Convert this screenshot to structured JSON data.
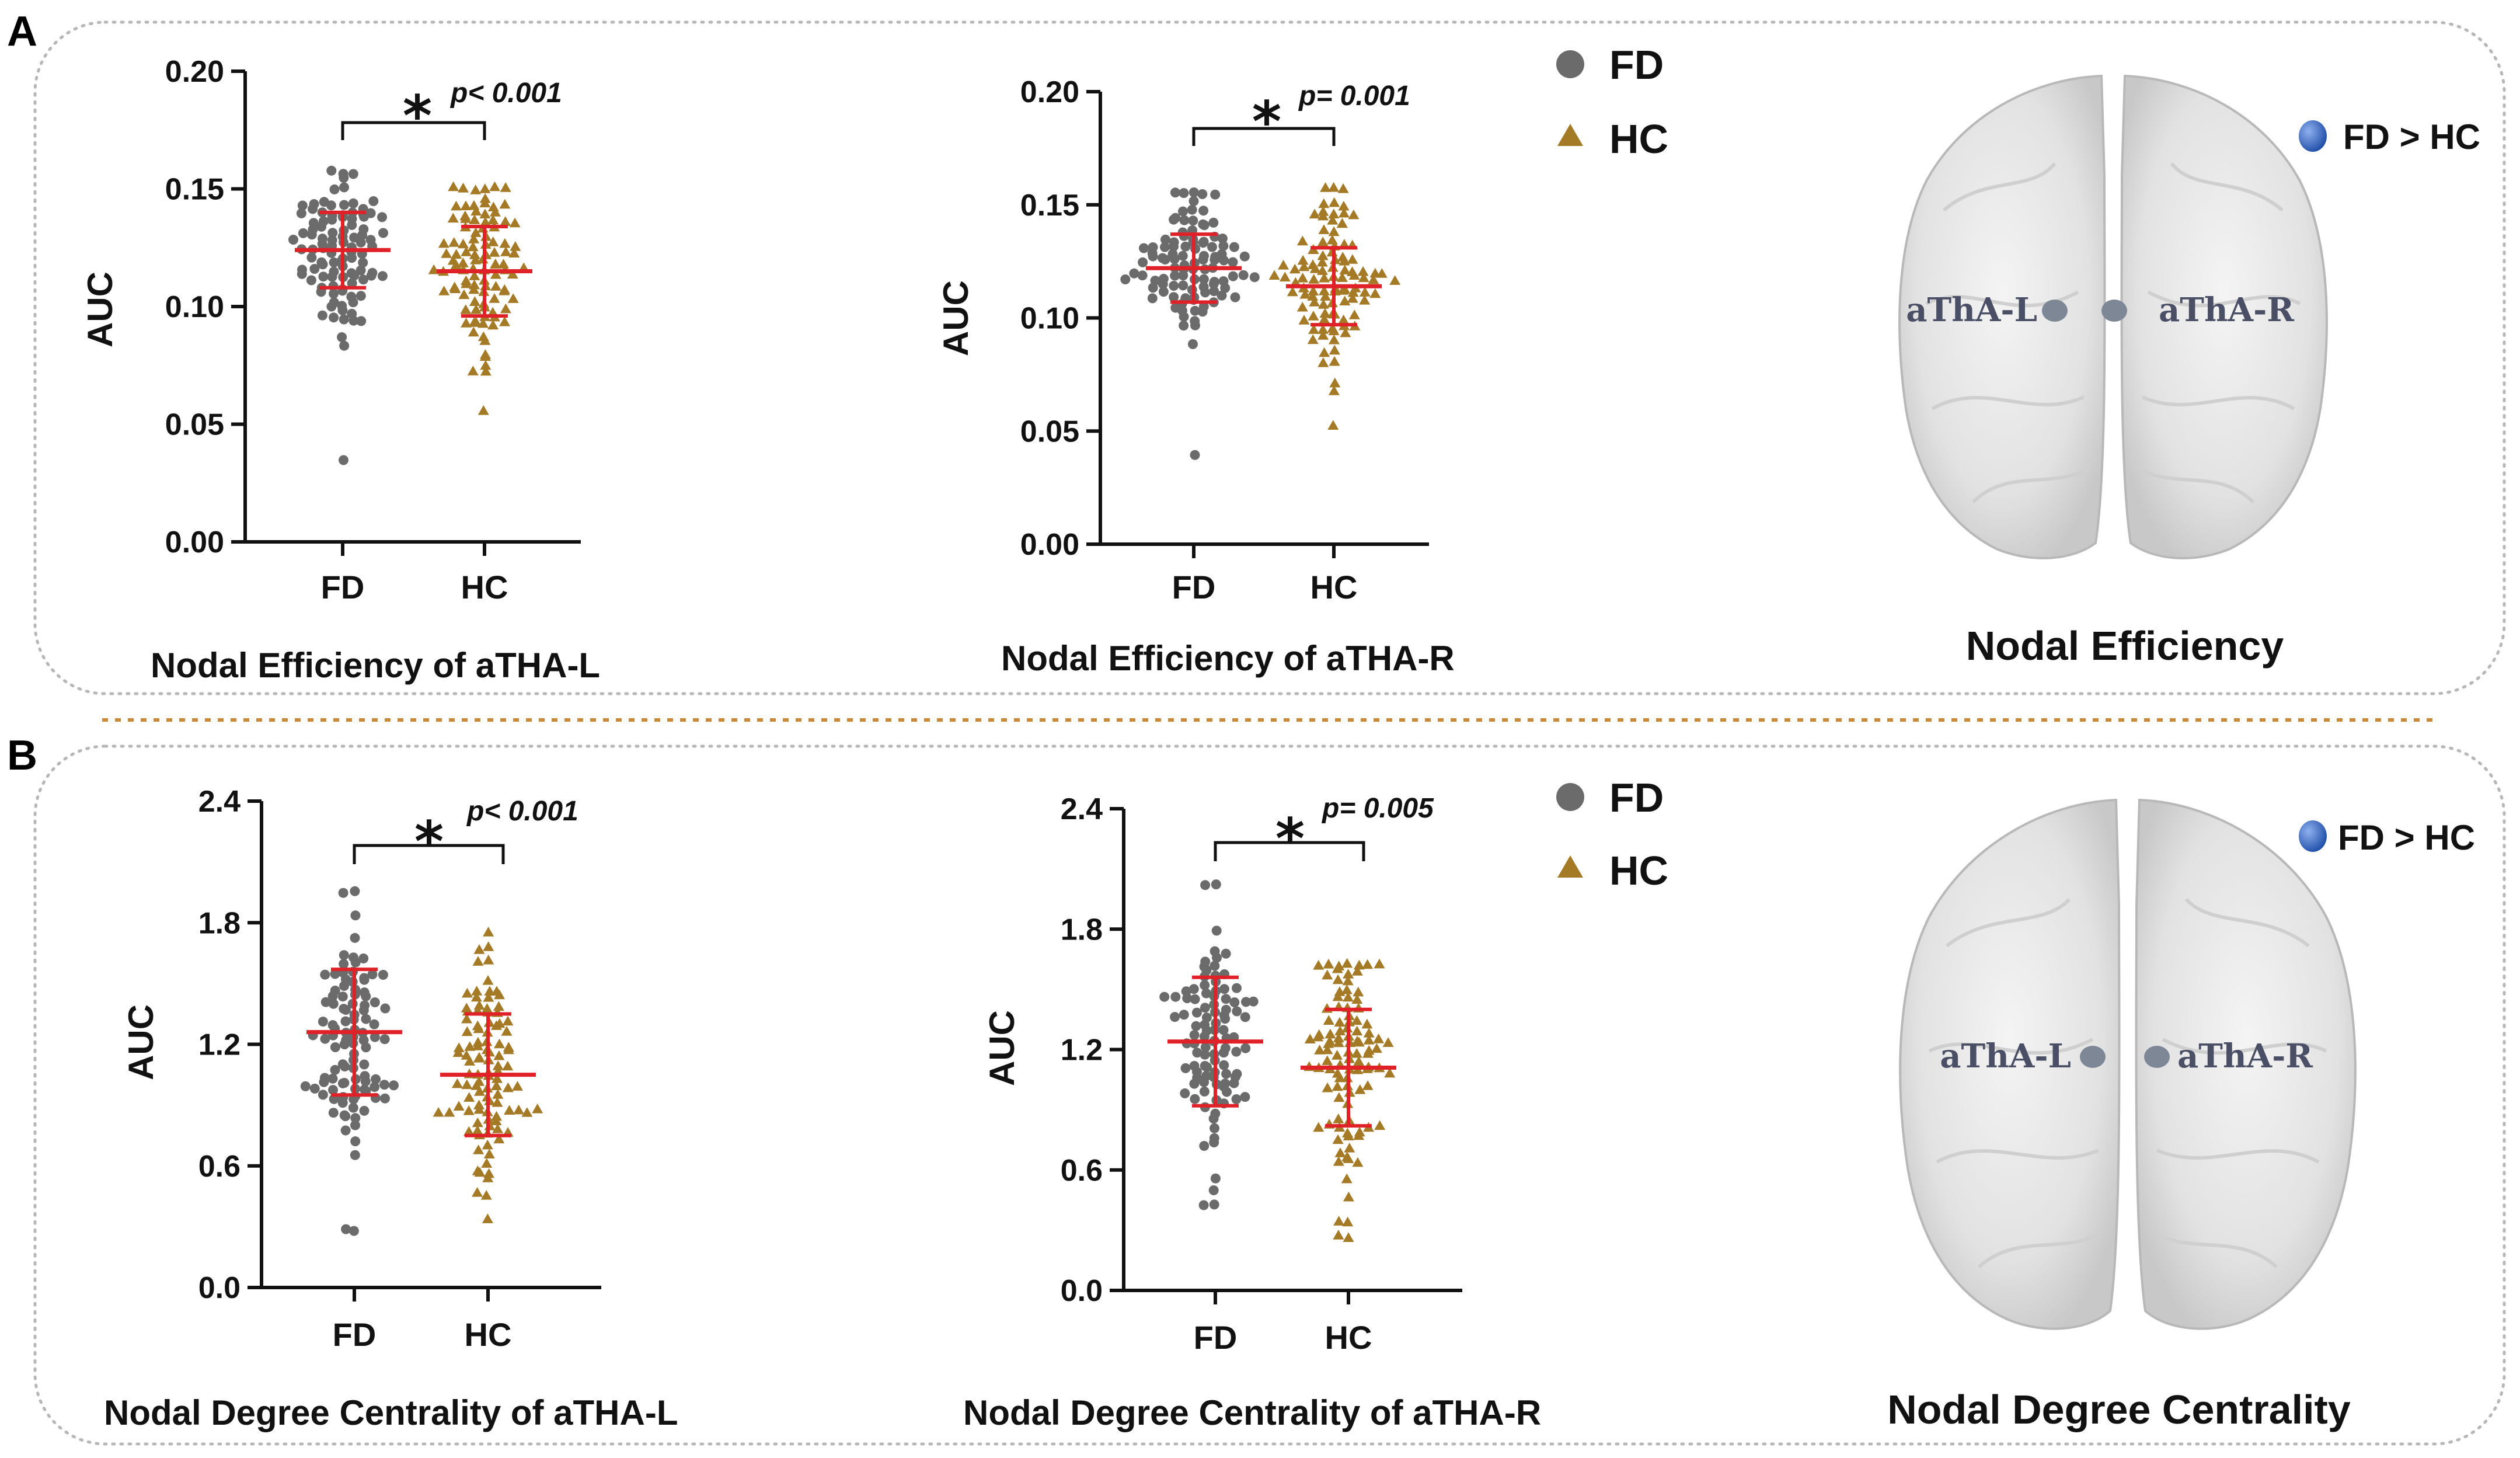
{
  "colors": {
    "fd": "#6b6b6b",
    "hc": "#a57a26",
    "errorbar": "#e02128",
    "node_gray": "#7d8796",
    "node_blue": "#2f5fb3"
  },
  "panels": [
    {
      "letter": "A",
      "legend": {
        "fd": "FD",
        "hc": "HC"
      },
      "brain": {
        "title": "Nodal Efficiency",
        "contrast": "FD > HC",
        "left_region": "aThA-L",
        "right_region": "aThA-R"
      }
    },
    {
      "letter": "B",
      "legend": {
        "fd": "FD",
        "hc": "HC"
      },
      "brain": {
        "title": "Nodal Degree Centrality",
        "contrast": "FD > HC",
        "left_region": "aThA-L",
        "right_region": "aThA-R"
      }
    }
  ],
  "chart_data": [
    {
      "type": "scatter",
      "title": "Nodal Efficiency of aTHA-L",
      "ylabel": "AUC",
      "categories": [
        "FD",
        "HC"
      ],
      "ylim": [
        0,
        0.2
      ],
      "yticks": [
        "0.00",
        "0.05",
        "0.10",
        "0.15",
        "0.20"
      ],
      "significance": {
        "star": "*",
        "p": "p< 0.001"
      },
      "series": [
        {
          "name": "FD",
          "marker": "circle",
          "mean": 0.124,
          "sd": 0.016,
          "min": 0.035,
          "max": 0.157,
          "n": 104
        },
        {
          "name": "HC",
          "marker": "triangle",
          "mean": 0.115,
          "sd": 0.019,
          "min": 0.056,
          "max": 0.151,
          "n": 104
        }
      ]
    },
    {
      "type": "scatter",
      "title": "Nodal Efficiency of aTHA-R",
      "ylabel": "AUC",
      "categories": [
        "FD",
        "HC"
      ],
      "ylim": [
        0,
        0.2
      ],
      "yticks": [
        "0.00",
        "0.05",
        "0.10",
        "0.15",
        "0.20"
      ],
      "significance": {
        "star": "*",
        "p": "p= 0.001"
      },
      "series": [
        {
          "name": "FD",
          "marker": "circle",
          "mean": 0.122,
          "sd": 0.015,
          "min": 0.04,
          "max": 0.155,
          "n": 104
        },
        {
          "name": "HC",
          "marker": "triangle",
          "mean": 0.114,
          "sd": 0.017,
          "min": 0.053,
          "max": 0.157,
          "n": 104
        }
      ]
    },
    {
      "type": "scatter",
      "title": "Nodal Degree Centrality of aTHA-L",
      "ylabel": "AUC",
      "categories": [
        "FD",
        "HC"
      ],
      "ylim": [
        0,
        2.4
      ],
      "yticks": [
        "0.0",
        "0.6",
        "1.2",
        "1.8",
        "2.4"
      ],
      "significance": {
        "star": "*",
        "p": "p< 0.001"
      },
      "series": [
        {
          "name": "FD",
          "marker": "circle",
          "mean": 1.26,
          "sd": 0.31,
          "min": 0.28,
          "max": 1.95,
          "n": 104
        },
        {
          "name": "HC",
          "marker": "triangle",
          "mean": 1.05,
          "sd": 0.3,
          "min": 0.33,
          "max": 1.75,
          "n": 104
        }
      ]
    },
    {
      "type": "scatter",
      "title": "Nodal Degree Centrality of aTHA-R",
      "ylabel": "AUC",
      "categories": [
        "FD",
        "HC"
      ],
      "ylim": [
        0,
        2.4
      ],
      "yticks": [
        "0.0",
        "0.6",
        "1.2",
        "1.8",
        "2.4"
      ],
      "significance": {
        "star": "*",
        "p": "p= 0.005"
      },
      "series": [
        {
          "name": "FD",
          "marker": "circle",
          "mean": 1.24,
          "sd": 0.32,
          "min": 0.42,
          "max": 2.02,
          "n": 104
        },
        {
          "name": "HC",
          "marker": "triangle",
          "mean": 1.11,
          "sd": 0.29,
          "min": 0.27,
          "max": 1.62,
          "n": 104
        }
      ]
    }
  ]
}
